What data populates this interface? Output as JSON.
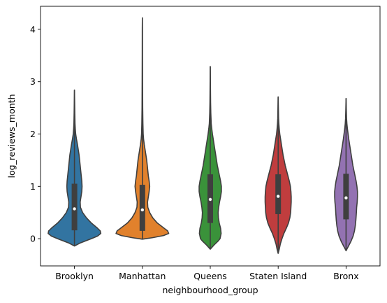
{
  "chart_data": {
    "type": "violin",
    "title": "",
    "xlabel": "neighbourhood_group",
    "ylabel": "log_reviews_month",
    "ylim": [
      -0.52,
      4.44
    ],
    "yticks": [
      0,
      1,
      2,
      3,
      4
    ],
    "grid": false,
    "legend": "none",
    "categories": [
      "Brooklyn",
      "Manhattan",
      "Queens",
      "Staten Island",
      "Bronx"
    ],
    "series": [
      {
        "category": "Brooklyn",
        "color": "#3274a1",
        "min": -0.14,
        "max": 2.84,
        "q1": 0.16,
        "median": 0.57,
        "q3": 1.05,
        "whisker_low": -0.14,
        "whisker_high": 2.84,
        "density": [
          [
            -0.14,
            0.0
          ],
          [
            -0.08,
            0.22
          ],
          [
            0.0,
            0.62
          ],
          [
            0.05,
            0.85
          ],
          [
            0.1,
            0.97
          ],
          [
            0.15,
            0.95
          ],
          [
            0.2,
            0.85
          ],
          [
            0.3,
            0.62
          ],
          [
            0.4,
            0.44
          ],
          [
            0.5,
            0.3
          ],
          [
            0.6,
            0.22
          ],
          [
            0.7,
            0.21
          ],
          [
            0.8,
            0.24
          ],
          [
            0.9,
            0.27
          ],
          [
            1.0,
            0.28
          ],
          [
            1.1,
            0.27
          ],
          [
            1.2,
            0.25
          ],
          [
            1.3,
            0.23
          ],
          [
            1.4,
            0.21
          ],
          [
            1.5,
            0.19
          ],
          [
            1.6,
            0.17
          ],
          [
            1.7,
            0.14
          ],
          [
            1.8,
            0.11
          ],
          [
            1.9,
            0.075
          ],
          [
            2.0,
            0.045
          ],
          [
            2.1,
            0.03
          ],
          [
            2.2,
            0.02
          ],
          [
            2.4,
            0.012
          ],
          [
            2.6,
            0.007
          ],
          [
            2.84,
            0.0
          ]
        ]
      },
      {
        "category": "Manhattan",
        "color": "#e1812c",
        "min": -0.01,
        "max": 4.22,
        "q1": 0.15,
        "median": 0.55,
        "q3": 1.03,
        "whisker_low": -0.01,
        "whisker_high": 4.22,
        "density": [
          [
            -0.01,
            0.0
          ],
          [
            0.02,
            0.38
          ],
          [
            0.06,
            0.78
          ],
          [
            0.1,
            0.97
          ],
          [
            0.15,
            0.93
          ],
          [
            0.2,
            0.8
          ],
          [
            0.3,
            0.55
          ],
          [
            0.4,
            0.38
          ],
          [
            0.5,
            0.27
          ],
          [
            0.6,
            0.2
          ],
          [
            0.7,
            0.19
          ],
          [
            0.8,
            0.22
          ],
          [
            0.9,
            0.25
          ],
          [
            1.0,
            0.27
          ],
          [
            1.1,
            0.25
          ],
          [
            1.2,
            0.22
          ],
          [
            1.3,
            0.2
          ],
          [
            1.4,
            0.18
          ],
          [
            1.5,
            0.16
          ],
          [
            1.6,
            0.13
          ],
          [
            1.7,
            0.1
          ],
          [
            1.8,
            0.07
          ],
          [
            1.9,
            0.045
          ],
          [
            2.0,
            0.03
          ],
          [
            2.2,
            0.02
          ],
          [
            2.5,
            0.012
          ],
          [
            3.0,
            0.008
          ],
          [
            3.5,
            0.005
          ],
          [
            4.0,
            0.003
          ],
          [
            4.22,
            0.0
          ]
        ]
      },
      {
        "category": "Queens",
        "color": "#3a923a",
        "min": -0.2,
        "max": 3.29,
        "q1": 0.3,
        "median": 0.75,
        "q3": 1.23,
        "whisker_low": -0.2,
        "whisker_high": 3.29,
        "density": [
          [
            -0.2,
            0.0
          ],
          [
            -0.12,
            0.14
          ],
          [
            -0.05,
            0.28
          ],
          [
            0.0,
            0.36
          ],
          [
            0.1,
            0.4
          ],
          [
            0.2,
            0.38
          ],
          [
            0.3,
            0.33
          ],
          [
            0.4,
            0.3
          ],
          [
            0.5,
            0.29
          ],
          [
            0.6,
            0.31
          ],
          [
            0.7,
            0.34
          ],
          [
            0.8,
            0.38
          ],
          [
            0.9,
            0.41
          ],
          [
            1.0,
            0.41
          ],
          [
            1.1,
            0.38
          ],
          [
            1.2,
            0.34
          ],
          [
            1.3,
            0.3
          ],
          [
            1.4,
            0.26
          ],
          [
            1.5,
            0.23
          ],
          [
            1.6,
            0.2
          ],
          [
            1.7,
            0.17
          ],
          [
            1.8,
            0.14
          ],
          [
            1.9,
            0.11
          ],
          [
            2.0,
            0.08
          ],
          [
            2.1,
            0.055
          ],
          [
            2.2,
            0.035
          ],
          [
            2.4,
            0.02
          ],
          [
            2.6,
            0.012
          ],
          [
            2.9,
            0.007
          ],
          [
            3.29,
            0.0
          ]
        ]
      },
      {
        "category": "Staten Island",
        "color": "#c03d3e",
        "min": -0.28,
        "max": 2.71,
        "q1": 0.47,
        "median": 0.81,
        "q3": 1.23,
        "whisker_low": -0.28,
        "whisker_high": 2.71,
        "density": [
          [
            -0.28,
            0.0
          ],
          [
            -0.2,
            0.04
          ],
          [
            -0.1,
            0.08
          ],
          [
            0.0,
            0.14
          ],
          [
            0.1,
            0.21
          ],
          [
            0.2,
            0.3
          ],
          [
            0.3,
            0.38
          ],
          [
            0.4,
            0.43
          ],
          [
            0.5,
            0.46
          ],
          [
            0.6,
            0.47
          ],
          [
            0.7,
            0.48
          ],
          [
            0.8,
            0.48
          ],
          [
            0.9,
            0.47
          ],
          [
            1.0,
            0.45
          ],
          [
            1.1,
            0.41
          ],
          [
            1.2,
            0.36
          ],
          [
            1.3,
            0.31
          ],
          [
            1.4,
            0.26
          ],
          [
            1.5,
            0.22
          ],
          [
            1.6,
            0.18
          ],
          [
            1.7,
            0.15
          ],
          [
            1.8,
            0.12
          ],
          [
            1.9,
            0.09
          ],
          [
            2.0,
            0.06
          ],
          [
            2.1,
            0.04
          ],
          [
            2.2,
            0.025
          ],
          [
            2.3,
            0.015
          ],
          [
            2.5,
            0.008
          ],
          [
            2.71,
            0.0
          ]
        ]
      },
      {
        "category": "Bronx",
        "color": "#9372b2",
        "min": -0.23,
        "max": 2.68,
        "q1": 0.37,
        "median": 0.78,
        "q3": 1.24,
        "whisker_low": -0.23,
        "whisker_high": 2.68,
        "density": [
          [
            -0.23,
            0.0
          ],
          [
            -0.15,
            0.08
          ],
          [
            -0.05,
            0.18
          ],
          [
            0.05,
            0.26
          ],
          [
            0.15,
            0.31
          ],
          [
            0.25,
            0.34
          ],
          [
            0.35,
            0.36
          ],
          [
            0.5,
            0.38
          ],
          [
            0.6,
            0.39
          ],
          [
            0.7,
            0.41
          ],
          [
            0.8,
            0.42
          ],
          [
            0.9,
            0.42
          ],
          [
            1.0,
            0.4
          ],
          [
            1.1,
            0.37
          ],
          [
            1.2,
            0.33
          ],
          [
            1.3,
            0.29
          ],
          [
            1.4,
            0.25
          ],
          [
            1.5,
            0.22
          ],
          [
            1.6,
            0.19
          ],
          [
            1.7,
            0.16
          ],
          [
            1.8,
            0.13
          ],
          [
            1.9,
            0.1
          ],
          [
            2.0,
            0.075
          ],
          [
            2.1,
            0.05
          ],
          [
            2.2,
            0.03
          ],
          [
            2.3,
            0.018
          ],
          [
            2.45,
            0.01
          ],
          [
            2.68,
            0.0
          ]
        ]
      }
    ]
  }
}
